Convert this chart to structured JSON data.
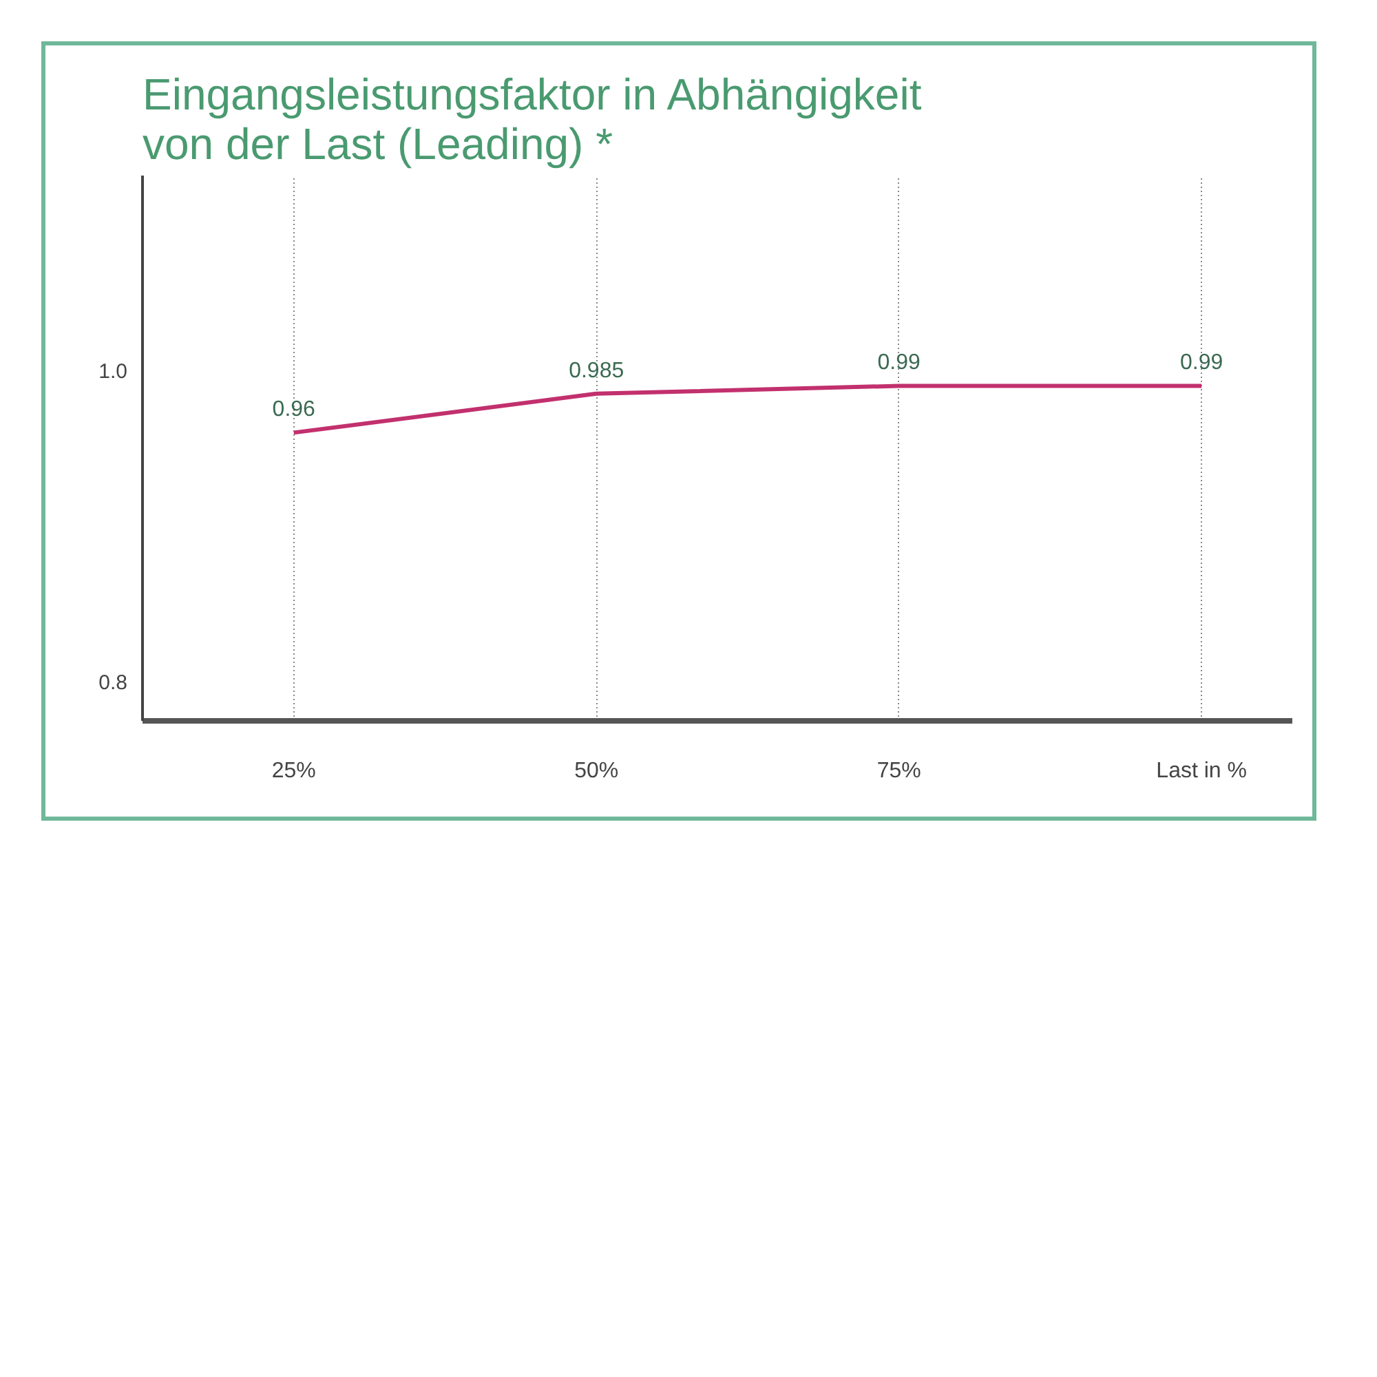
{
  "chart_data": {
    "type": "line",
    "title": "Eingangsleistungsfaktor in Abhängigkeit von der Last (Leading) *",
    "categories": [
      "25%",
      "50%",
      "75%",
      null
    ],
    "xlabel": "Last in %",
    "series": [
      {
        "color": "#c2306e",
        "values": [
          0.96,
          0.985,
          0.99,
          0.99
        ]
      }
    ],
    "ylim": [
      0.775,
      1.125
    ],
    "yticks": [
      {
        "value": 1.0,
        "label": "1.0"
      },
      0.8
    ],
    "data_labels": true,
    "grid": "x",
    "marker": "none",
    "line_style": "solid"
  }
}
